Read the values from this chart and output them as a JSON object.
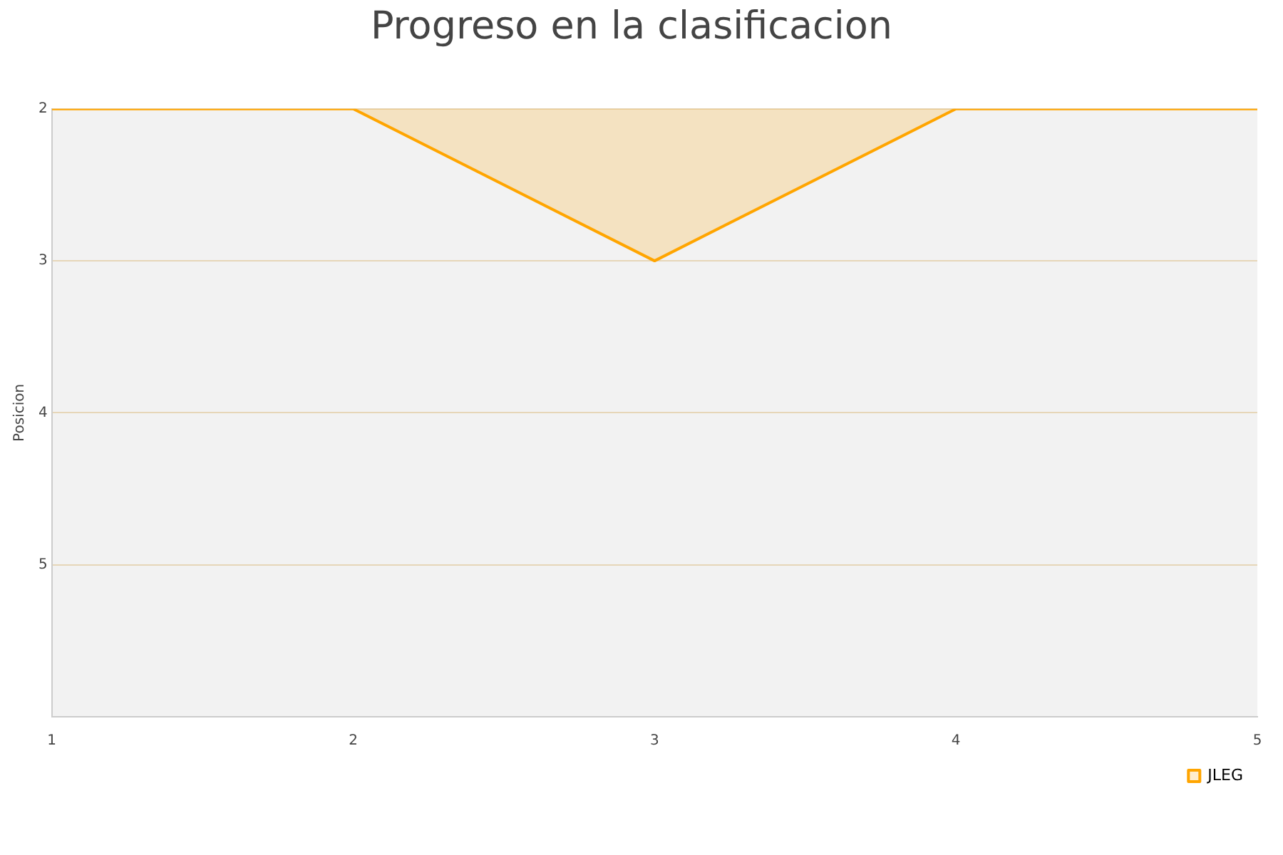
{
  "chart_data": {
    "type": "area",
    "title": "Progreso en la clasificacion",
    "ylabel": "Posicion",
    "x": [
      1,
      2,
      3,
      4,
      5
    ],
    "series": [
      {
        "name": "JLEG",
        "color": "#ffa500",
        "values": [
          2,
          2,
          3,
          2,
          2
        ]
      }
    ],
    "xlim": [
      1,
      5
    ],
    "xticks": [
      1,
      2,
      3,
      4,
      5
    ],
    "ylim": [
      6,
      2
    ],
    "yticks": [
      2,
      3,
      4,
      5
    ],
    "grid": "y",
    "legend": "bottom right"
  }
}
